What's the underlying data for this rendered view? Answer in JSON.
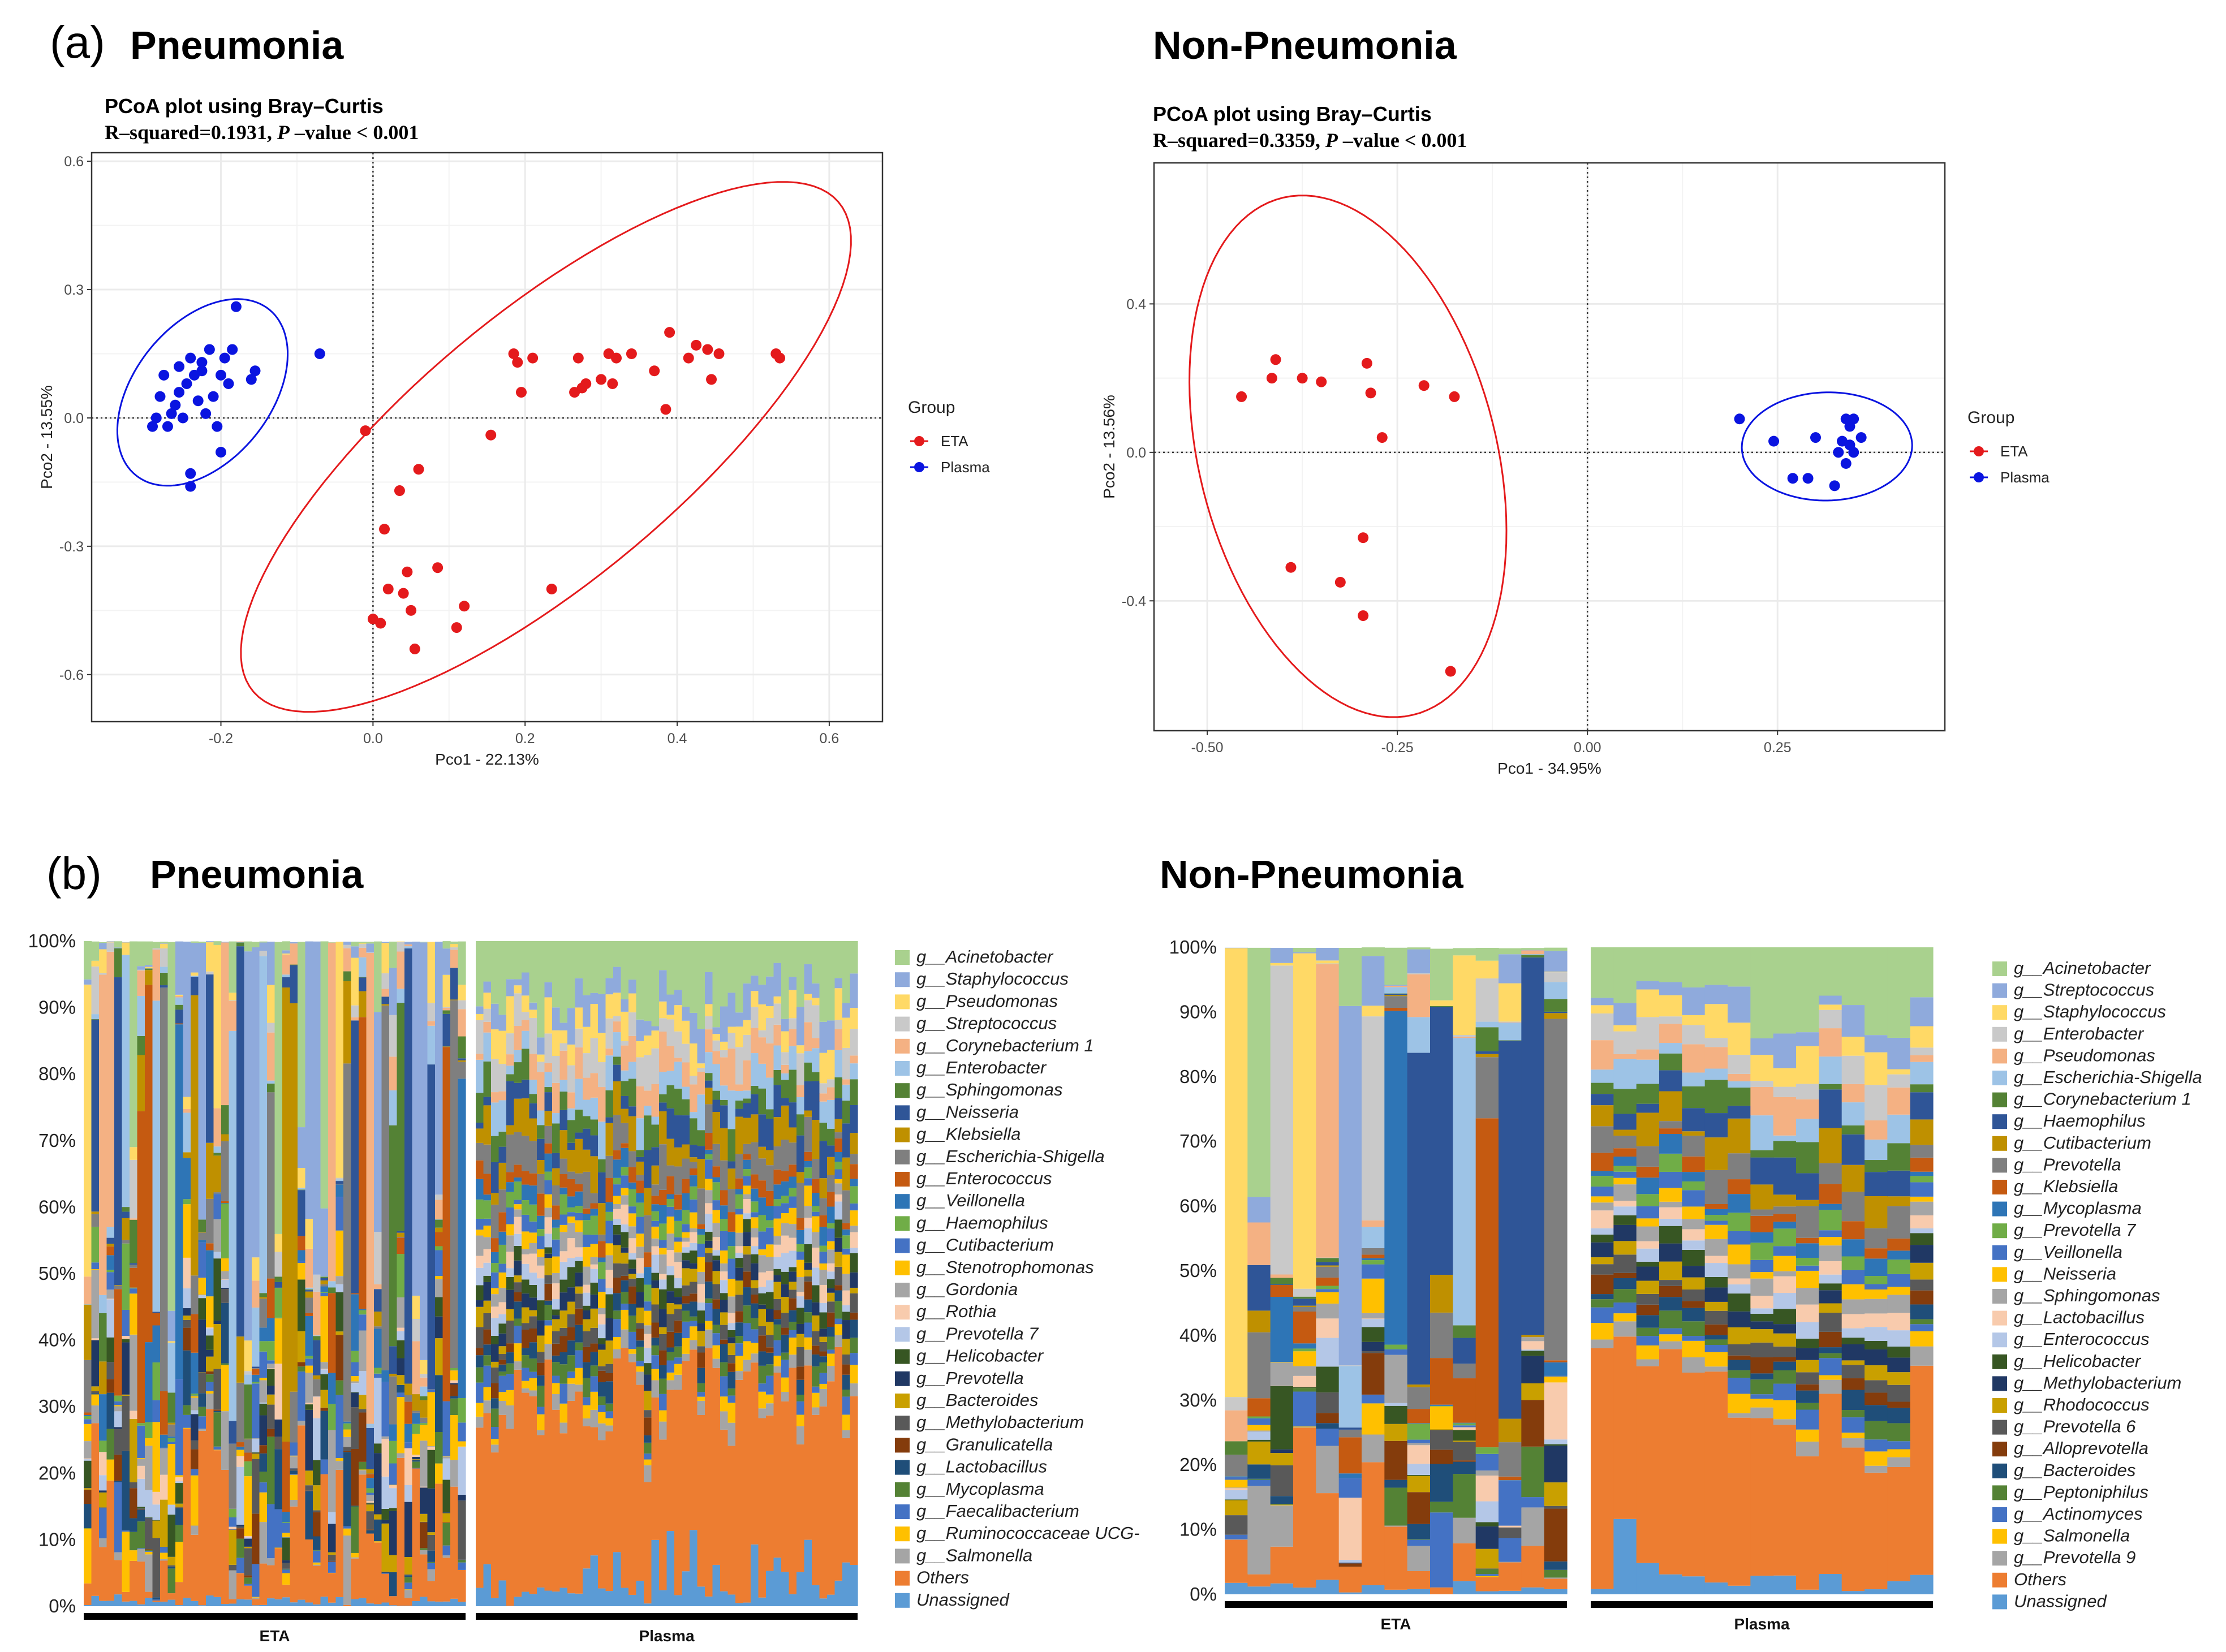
{
  "panels": {
    "a_letter": "(a)",
    "b_letter": "(b)",
    "a_left_title": "Pneumonia",
    "a_right_title": "Non-Pneumonia",
    "b_left_title": "Pneumonia",
    "b_right_title": "Non-Pneumonia"
  },
  "colors": {
    "eta": "#e41a1c",
    "plasma": "#0a14e0",
    "grid": "#ebebeb",
    "others": "#ed7d31",
    "unassigned": "#5b9bd5"
  },
  "chart_data": [
    {
      "type": "scatter",
      "id": "pcoa_pneumonia",
      "title": "PCoA plot using Bray–Curtis",
      "r_text": "R–squared=0.1931,",
      "p_letter": "P",
      "p_text": "–value < 0.001",
      "xlabel": "Pco1 - 22.13%",
      "ylabel": "Pco2 - 13.55%",
      "xlim": [
        -0.37,
        0.67
      ],
      "ylim": [
        -0.71,
        0.62
      ],
      "xticks": [
        -0.2,
        0.0,
        0.2,
        0.4,
        0.6
      ],
      "xtick_labels": [
        "-0.2",
        "0.0",
        "0.2",
        "0.4",
        "0.6"
      ],
      "yticks": [
        -0.6,
        -0.3,
        0.0,
        0.3,
        0.6
      ],
      "ytick_labels": [
        "-0.6",
        "-0.3",
        "0.0",
        "0.3",
        "0.6"
      ],
      "legend_title": "Group",
      "series": [
        {
          "name": "ETA",
          "points": [
            [
              -0.01,
              -0.03
            ],
            [
              0.0,
              -0.47
            ],
            [
              0.01,
              -0.48
            ],
            [
              0.015,
              -0.26
            ],
            [
              0.02,
              -0.4
            ],
            [
              0.035,
              -0.17
            ],
            [
              0.04,
              -0.41
            ],
            [
              0.045,
              -0.36
            ],
            [
              0.05,
              -0.45
            ],
            [
              0.055,
              -0.54
            ],
            [
              0.06,
              -0.12
            ],
            [
              0.085,
              -0.35
            ],
            [
              0.11,
              -0.49
            ],
            [
              0.12,
              -0.44
            ],
            [
              0.155,
              -0.04
            ],
            [
              0.185,
              0.15
            ],
            [
              0.19,
              0.13
            ],
            [
              0.195,
              0.06
            ],
            [
              0.21,
              0.14
            ],
            [
              0.235,
              -0.4
            ],
            [
              0.27,
              0.14
            ],
            [
              0.265,
              0.06
            ],
            [
              0.275,
              0.07
            ],
            [
              0.28,
              0.08
            ],
            [
              0.3,
              0.09
            ],
            [
              0.31,
              0.15
            ],
            [
              0.32,
              0.14
            ],
            [
              0.315,
              0.08
            ],
            [
              0.34,
              0.15
            ],
            [
              0.37,
              0.11
            ],
            [
              0.385,
              0.02
            ],
            [
              0.39,
              0.2
            ],
            [
              0.415,
              0.14
            ],
            [
              0.425,
              0.17
            ],
            [
              0.44,
              0.16
            ],
            [
              0.445,
              0.09
            ],
            [
              0.455,
              0.15
            ],
            [
              0.53,
              0.15
            ],
            [
              0.535,
              0.14
            ]
          ]
        },
        {
          "name": "Plasma",
          "points": [
            [
              -0.29,
              -0.02
            ],
            [
              -0.285,
              0.0
            ],
            [
              -0.28,
              0.05
            ],
            [
              -0.275,
              0.1
            ],
            [
              -0.27,
              -0.02
            ],
            [
              -0.265,
              0.01
            ],
            [
              -0.26,
              0.03
            ],
            [
              -0.255,
              0.06
            ],
            [
              -0.255,
              0.12
            ],
            [
              -0.25,
              0.0
            ],
            [
              -0.245,
              0.08
            ],
            [
              -0.24,
              0.14
            ],
            [
              -0.24,
              -0.16
            ],
            [
              -0.24,
              -0.13
            ],
            [
              -0.235,
              0.1
            ],
            [
              -0.23,
              0.04
            ],
            [
              -0.225,
              0.11
            ],
            [
              -0.225,
              0.13
            ],
            [
              -0.22,
              0.01
            ],
            [
              -0.215,
              0.16
            ],
            [
              -0.21,
              0.05
            ],
            [
              -0.205,
              -0.02
            ],
            [
              -0.2,
              -0.08
            ],
            [
              -0.2,
              0.1
            ],
            [
              -0.195,
              0.14
            ],
            [
              -0.19,
              0.08
            ],
            [
              -0.185,
              0.16
            ],
            [
              -0.18,
              0.26
            ],
            [
              -0.16,
              0.09
            ],
            [
              -0.155,
              0.11
            ],
            [
              -0.07,
              0.15
            ]
          ]
        }
      ]
    },
    {
      "type": "scatter",
      "id": "pcoa_nonpneumonia",
      "title": "PCoA plot using Bray–Curtis",
      "r_text": "R–squared=0.3359,",
      "p_letter": "P",
      "p_text": "–value < 0.001",
      "xlabel": "Pco1 - 34.95%",
      "ylabel": "Pco2 - 13.56%",
      "xlim": [
        -0.57,
        0.47
      ],
      "ylim": [
        -0.75,
        0.78
      ],
      "xticks": [
        -0.5,
        -0.25,
        0.0,
        0.25
      ],
      "xtick_labels": [
        "-0.50",
        "-0.25",
        "0.00",
        "0.25"
      ],
      "yticks": [
        -0.4,
        0.0,
        0.4
      ],
      "ytick_labels": [
        "-0.4",
        "0.0",
        "0.4"
      ],
      "legend_title": "Group",
      "series": [
        {
          "name": "ETA",
          "points": [
            [
              -0.455,
              0.15
            ],
            [
              -0.415,
              0.2
            ],
            [
              -0.41,
              0.25
            ],
            [
              -0.375,
              0.2
            ],
            [
              -0.35,
              0.19
            ],
            [
              -0.39,
              -0.31
            ],
            [
              -0.325,
              -0.35
            ],
            [
              -0.295,
              -0.23
            ],
            [
              -0.29,
              0.24
            ],
            [
              -0.285,
              0.16
            ],
            [
              -0.27,
              0.04
            ],
            [
              -0.295,
              -0.44
            ],
            [
              -0.215,
              0.18
            ],
            [
              -0.175,
              0.15
            ],
            [
              -0.18,
              -0.59
            ]
          ]
        },
        {
          "name": "Plasma",
          "points": [
            [
              0.2,
              0.09
            ],
            [
              0.245,
              0.03
            ],
            [
              0.27,
              -0.07
            ],
            [
              0.29,
              -0.07
            ],
            [
              0.3,
              0.04
            ],
            [
              0.325,
              -0.09
            ],
            [
              0.33,
              0.0
            ],
            [
              0.335,
              0.03
            ],
            [
              0.34,
              -0.03
            ],
            [
              0.345,
              0.07
            ],
            [
              0.35,
              0.09
            ],
            [
              0.35,
              0.0
            ],
            [
              0.36,
              0.04
            ],
            [
              0.34,
              0.09
            ],
            [
              0.345,
              0.02
            ]
          ]
        }
      ]
    },
    {
      "type": "bar",
      "id": "taxa_pneumonia",
      "stacked": true,
      "ylim": [
        0,
        100
      ],
      "yticks": [
        0,
        10,
        20,
        30,
        40,
        50,
        60,
        70,
        80,
        90,
        100
      ],
      "ytick_labels": [
        "0%",
        "10%",
        "20%",
        "30%",
        "40%",
        "50%",
        "60%",
        "70%",
        "80%",
        "90%",
        "100%"
      ],
      "groups": [
        {
          "name": "ETA",
          "samples": 50
        },
        {
          "name": "Plasma",
          "samples": 50
        }
      ],
      "taxa": [
        {
          "name": "g__Acinetobacter",
          "color": "#a9d18e"
        },
        {
          "name": "g__Staphylococcus",
          "color": "#8faadc"
        },
        {
          "name": "g__Pseudomonas",
          "color": "#ffd966"
        },
        {
          "name": "g__Streptococcus",
          "color": "#c9c9c9"
        },
        {
          "name": "g__Corynebacterium 1",
          "color": "#f4b183"
        },
        {
          "name": "g__Enterobacter",
          "color": "#9dc3e6"
        },
        {
          "name": "g__Sphingomonas",
          "color": "#548235"
        },
        {
          "name": "g__Neisseria",
          "color": "#2f5597"
        },
        {
          "name": "g__Klebsiella",
          "color": "#bf9000"
        },
        {
          "name": "g__Escherichia-Shigella",
          "color": "#7f7f7f"
        },
        {
          "name": "g__Enterococcus",
          "color": "#c55a11"
        },
        {
          "name": "g__Veillonella",
          "color": "#2e75b6"
        },
        {
          "name": "g__Haemophilus",
          "color": "#70ad47"
        },
        {
          "name": "g__Cutibacterium",
          "color": "#4472c4"
        },
        {
          "name": "g__Stenotrophomonas",
          "color": "#ffc000"
        },
        {
          "name": "g__Gordonia",
          "color": "#a5a5a5"
        },
        {
          "name": "g__Rothia",
          "color": "#f8cbad"
        },
        {
          "name": "g__Prevotella 7",
          "color": "#b4c7e7"
        },
        {
          "name": "g__Helicobacter",
          "color": "#375623"
        },
        {
          "name": "g__Prevotella",
          "color": "#203864"
        },
        {
          "name": "g__Bacteroides",
          "color": "#c9a000"
        },
        {
          "name": "g__Methylobacterium",
          "color": "#595959"
        },
        {
          "name": "g__Granulicatella",
          "color": "#843c0c"
        },
        {
          "name": "g__Lactobacillus",
          "color": "#1f4e79"
        },
        {
          "name": "g__Mycoplasma",
          "color": "#548235"
        },
        {
          "name": "g__Faecalibacterium",
          "color": "#4472c4"
        },
        {
          "name": "g__Ruminococcaceae UCG-",
          "color": "#ffc000"
        },
        {
          "name": "g__Salmonella",
          "color": "#a5a5a5"
        },
        {
          "name": "Others",
          "color": "#ed7d31"
        },
        {
          "name": "Unassigned",
          "color": "#5b9bd5"
        }
      ]
    },
    {
      "type": "bar",
      "id": "taxa_nonpneumonia",
      "stacked": true,
      "ylim": [
        0,
        100
      ],
      "yticks": [
        0,
        10,
        20,
        30,
        40,
        50,
        60,
        70,
        80,
        90,
        100
      ],
      "ytick_labels": [
        "0%",
        "10%",
        "20%",
        "30%",
        "40%",
        "50%",
        "60%",
        "70%",
        "80%",
        "90%",
        "100%"
      ],
      "groups": [
        {
          "name": "ETA",
          "samples": 15
        },
        {
          "name": "Plasma",
          "samples": 15
        }
      ],
      "taxa": [
        {
          "name": "g__Acinetobacter",
          "color": "#a9d18e"
        },
        {
          "name": "g__Streptococcus",
          "color": "#8faadc"
        },
        {
          "name": "g__Staphylococcus",
          "color": "#ffd966"
        },
        {
          "name": "g__Enterobacter",
          "color": "#c9c9c9"
        },
        {
          "name": "g__Pseudomonas",
          "color": "#f4b183"
        },
        {
          "name": "g__Escherichia-Shigella",
          "color": "#9dc3e6"
        },
        {
          "name": "g__Corynebacterium 1",
          "color": "#548235"
        },
        {
          "name": "g__Haemophilus",
          "color": "#2f5597"
        },
        {
          "name": "g__Cutibacterium",
          "color": "#bf9000"
        },
        {
          "name": "g__Prevotella",
          "color": "#7f7f7f"
        },
        {
          "name": "g__Klebsiella",
          "color": "#c55a11"
        },
        {
          "name": "g__Mycoplasma",
          "color": "#2e75b6"
        },
        {
          "name": "g__Prevotella 7",
          "color": "#70ad47"
        },
        {
          "name": "g__Veillonella",
          "color": "#4472c4"
        },
        {
          "name": "g__Neisseria",
          "color": "#ffc000"
        },
        {
          "name": "g__Sphingomonas",
          "color": "#a5a5a5"
        },
        {
          "name": "g__Lactobacillus",
          "color": "#f8cbad"
        },
        {
          "name": "g__Enterococcus",
          "color": "#b4c7e7"
        },
        {
          "name": "g__Helicobacter",
          "color": "#375623"
        },
        {
          "name": "g__Methylobacterium",
          "color": "#203864"
        },
        {
          "name": "g__Rhodococcus",
          "color": "#c9a000"
        },
        {
          "name": "g__Prevotella 6",
          "color": "#595959"
        },
        {
          "name": "g__Alloprevotella",
          "color": "#843c0c"
        },
        {
          "name": "g__Bacteroides",
          "color": "#1f4e79"
        },
        {
          "name": "g__Peptoniphilus",
          "color": "#548235"
        },
        {
          "name": "g__Actinomyces",
          "color": "#4472c4"
        },
        {
          "name": "g__Salmonella",
          "color": "#ffc000"
        },
        {
          "name": "g__Prevotella 9",
          "color": "#a5a5a5"
        },
        {
          "name": "Others",
          "color": "#ed7d31"
        },
        {
          "name": "Unassigned",
          "color": "#5b9bd5"
        }
      ]
    }
  ]
}
